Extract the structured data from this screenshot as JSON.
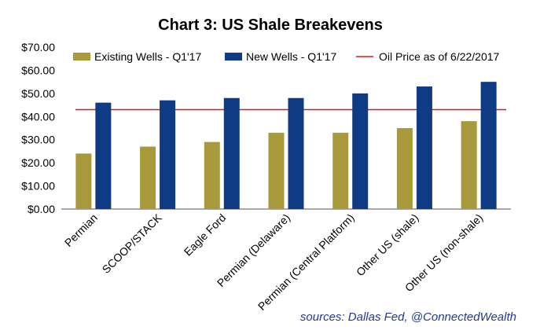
{
  "chart_data": {
    "type": "bar",
    "title": "Chart 3: US Shale Breakevens",
    "categories": [
      "Permian",
      "SCOOP/STACK",
      "Eagle Ford",
      "Permian (Delaware)",
      "Permian (Central Platform)",
      "Other US (shale)",
      "Other US (non-shale)"
    ],
    "series": [
      {
        "name": "Existing Wells - Q1'17",
        "values": [
          24,
          27,
          29,
          33,
          33,
          35,
          38
        ],
        "color": "#a89a3a"
      },
      {
        "name": "New Wells - Q1'17",
        "values": [
          46,
          47,
          48,
          48,
          50,
          53,
          55
        ],
        "color": "#0f3b85"
      }
    ],
    "reference_line": {
      "name": "Oil Price as of 6/22/2017",
      "value": 43,
      "color": "#cc1f1f"
    },
    "yticks": [
      "$0.00",
      "$10.00",
      "$20.00",
      "$30.00",
      "$40.00",
      "$50.00",
      "$60.00",
      "$70.00"
    ],
    "ylim": [
      0,
      70
    ],
    "xlabel": "",
    "ylabel": "",
    "grid": false,
    "legend_position": "top"
  },
  "source_note": "sources: Dallas Fed, @ConnectedWealth"
}
